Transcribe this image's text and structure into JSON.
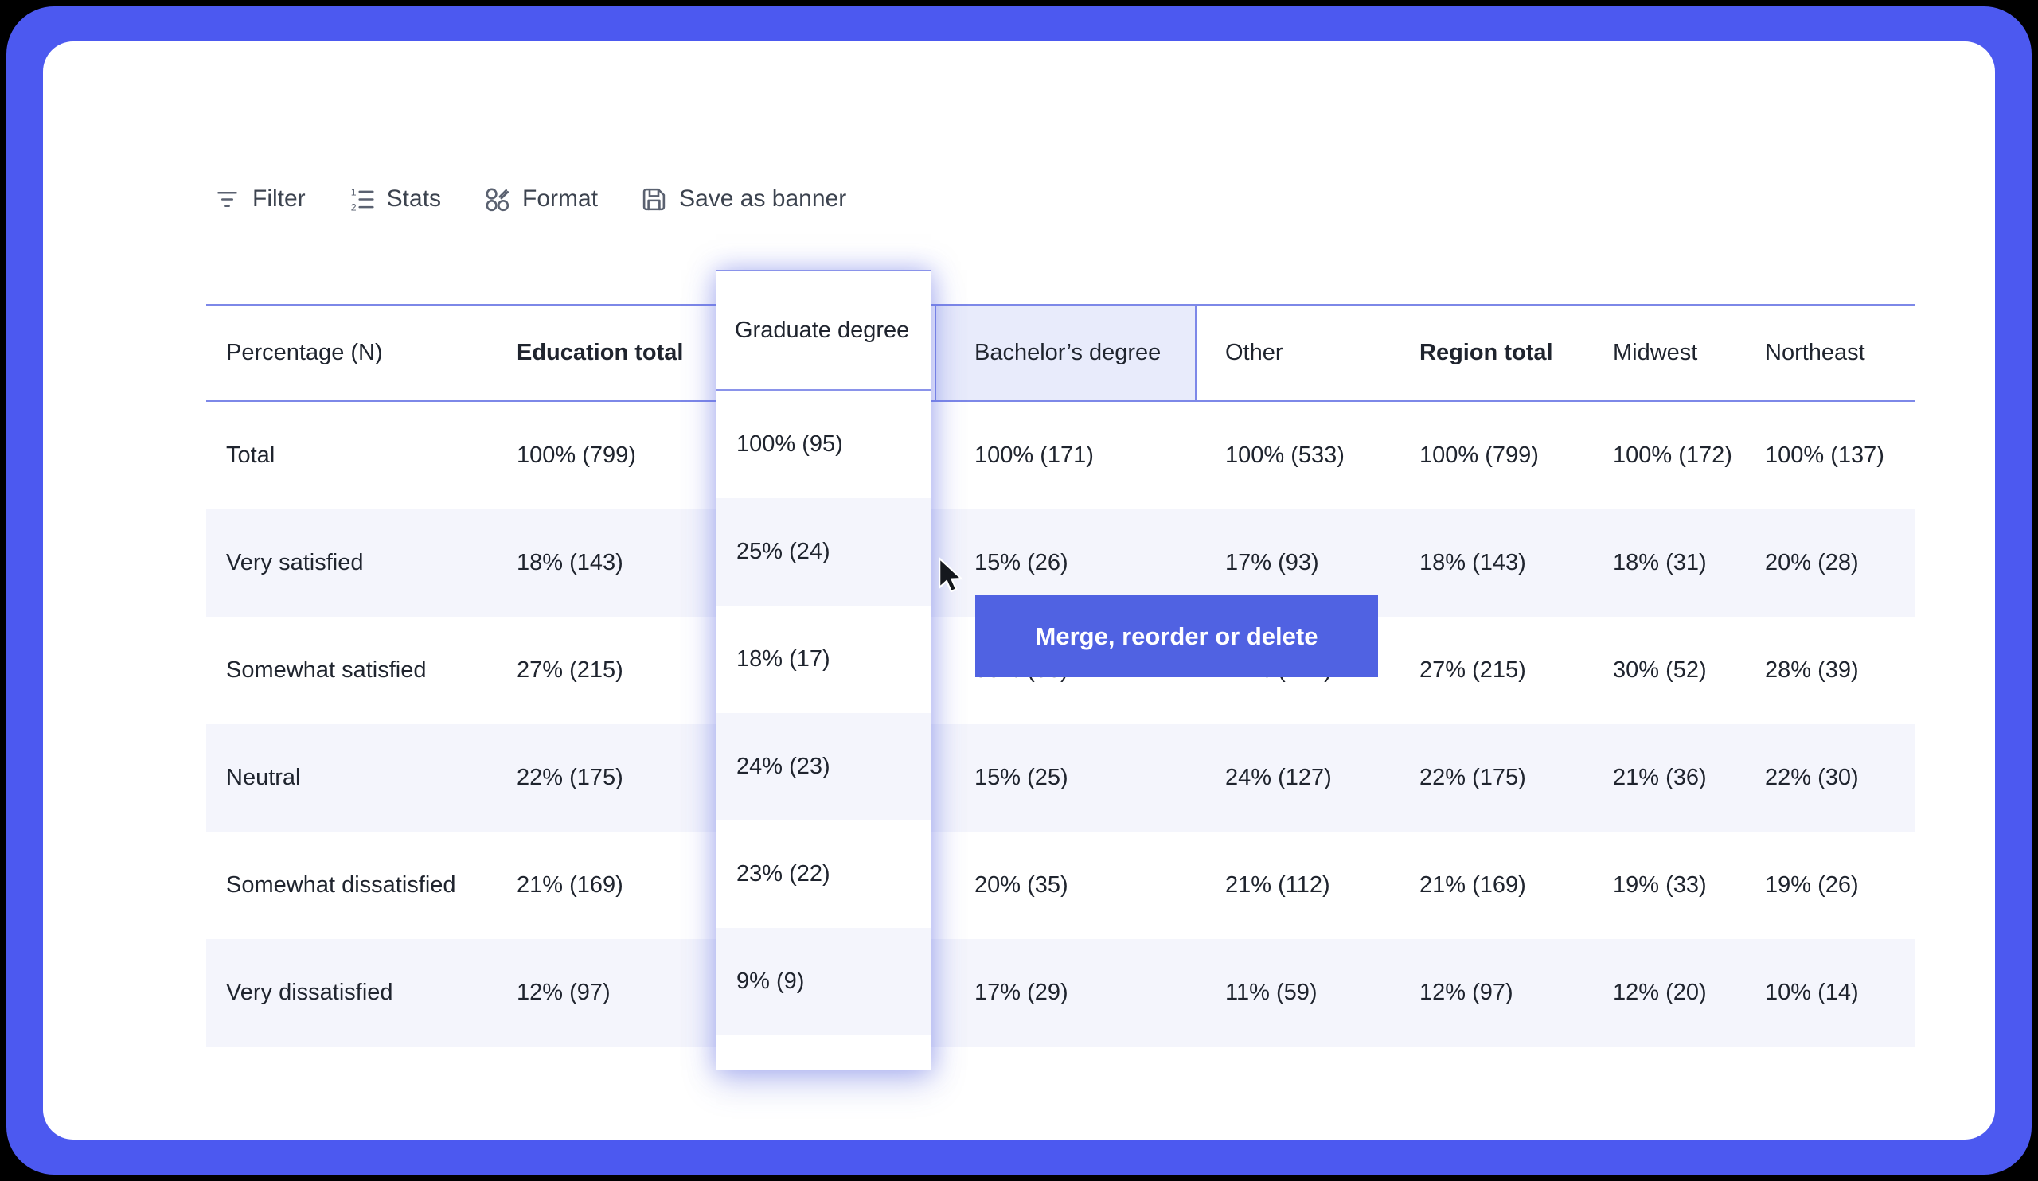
{
  "toolbar": {
    "items": [
      {
        "label": "Filter",
        "icon": "filter-icon"
      },
      {
        "label": "Stats",
        "icon": "stats-icon"
      },
      {
        "label": "Format",
        "icon": "format-icon"
      },
      {
        "label": "Save as banner",
        "icon": "save-icon"
      }
    ]
  },
  "table": {
    "drag_slot_index": 2,
    "columns": [
      {
        "label": "Percentage (N)",
        "bold": false
      },
      {
        "label": "Education total",
        "bold": true
      },
      {
        "label": "Bachelor’s degree",
        "bold": false,
        "highlighted": true
      },
      {
        "label": "Other",
        "bold": false
      },
      {
        "label": "Region total",
        "bold": true
      },
      {
        "label": "Midwest",
        "bold": false
      },
      {
        "label": "Northeast",
        "bold": false
      }
    ],
    "rows": [
      {
        "label": "Total",
        "values": [
          "100% (799)",
          "100% (171)",
          "100% (533)",
          "100% (799)",
          "100% (172)",
          "100% (137)"
        ]
      },
      {
        "label": "Very satisfied",
        "values": [
          "18% (143)",
          "15% (26)",
          "17% (93)",
          "18% (143)",
          "18% (31)",
          "20% (28)"
        ]
      },
      {
        "label": "Somewhat satisfied",
        "values": [
          "27% (215)",
          "33% (56)",
          "27% (142)",
          "27% (215)",
          "30% (52)",
          "28% (39)"
        ]
      },
      {
        "label": "Neutral",
        "values": [
          "22% (175)",
          "15% (25)",
          "24% (127)",
          "22% (175)",
          "21% (36)",
          "22% (30)"
        ]
      },
      {
        "label": "Somewhat dissatisfied",
        "values": [
          "21% (169)",
          "20% (35)",
          "21% (112)",
          "21% (169)",
          "19% (33)",
          "19% (26)"
        ]
      },
      {
        "label": "Very dissatisfied",
        "values": [
          "12% (97)",
          "17% (29)",
          "11% (59)",
          "12% (97)",
          "12% (20)",
          "10% (14)"
        ]
      }
    ]
  },
  "dragged_column": {
    "header": "Graduate degree",
    "values": [
      "100% (95)",
      "25% (24)",
      "18% (17)",
      "24% (23)",
      "23% (22)",
      "9% (9)"
    ]
  },
  "tooltip": {
    "text": "Merge, reorder or delete"
  },
  "colors": {
    "frame": "#4c59f0",
    "tooltip_bg": "#5062e2",
    "highlight_border": "#7d88e8",
    "highlight_fill": "#e8ebfb",
    "zebra_row": "#f4f5fc"
  }
}
